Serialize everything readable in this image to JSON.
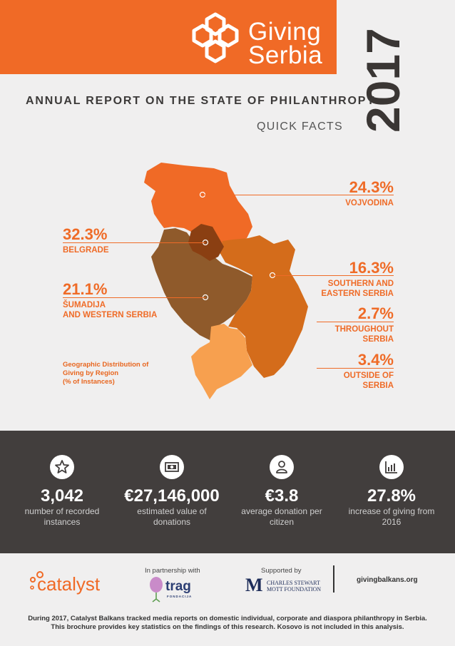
{
  "brand": {
    "line1": "Giving",
    "line2": "Serbia"
  },
  "year": "2017",
  "report_title": "ANNUAL REPORT ON THE STATE OF PHILANTHROPY",
  "subtitle": "QUICK FACTS",
  "map": {
    "regions": [
      {
        "pct": "24.3%",
        "label": "VOJVODINA",
        "value": 24.3,
        "color": "#f06a26"
      },
      {
        "pct": "32.3%",
        "label": "BELGRADE",
        "value": 32.3,
        "color": "#8a3f12"
      },
      {
        "pct": "21.1%",
        "label_line1": "ŠUMADIJA",
        "label_line2": "AND WESTERN SERBIA",
        "value": 21.1,
        "color": "#8f5a2b"
      },
      {
        "pct": "16.3%",
        "label_line1": "SOUTHERN AND",
        "label_line2": "EASTERN SERBIA",
        "value": 16.3,
        "color": "#d46c1b"
      },
      {
        "pct": "2.7%",
        "label_line1": "THROUGHOUT",
        "label_line2": "SERBIA",
        "value": 2.7
      },
      {
        "pct": "3.4%",
        "label_line1": "OUTSIDE OF",
        "label_line2": "SERBIA",
        "value": 3.4,
        "color": "#f7a04f"
      }
    ],
    "caption_line1": "Geographic Distribution of",
    "caption_line2": "Giving by Region",
    "caption_line3": "(% of Instances)"
  },
  "stats": [
    {
      "icon": "star-icon",
      "value": "3,042",
      "desc_line1": "number of recorded",
      "desc_line2": "instances"
    },
    {
      "icon": "banknote-icon",
      "value": "€27,146,000",
      "desc_line1": "estimated value of",
      "desc_line2": "donations"
    },
    {
      "icon": "person-icon",
      "value": "€3.8",
      "desc_line1": "average donation per",
      "desc_line2": "citizen"
    },
    {
      "icon": "bar-chart-icon",
      "value": "27.8%",
      "desc_line1": "increase of giving from",
      "desc_line2": "2016"
    }
  ],
  "partners": {
    "catalyst": "catalyst",
    "in_partnership_with": "In partnership with",
    "trag": "trag",
    "trag_sub": "FONDACIJA",
    "supported_by": "Supported by",
    "mott_line1": "CHARLES STEWART",
    "mott_line2": "MOTT FOUNDATION",
    "website": "givingbalkans.org"
  },
  "footer": {
    "line1": "During 2017, Catalyst Balkans tracked media reports on domestic individual, corporate and diaspora philanthropy in Serbia.",
    "line2": "This brochure provides key statistics on the findings of this research. Kosovo is not included in this analysis."
  },
  "colors": {
    "orange": "#f06a26",
    "dark": "#423e3d",
    "bg": "#f0efef"
  }
}
